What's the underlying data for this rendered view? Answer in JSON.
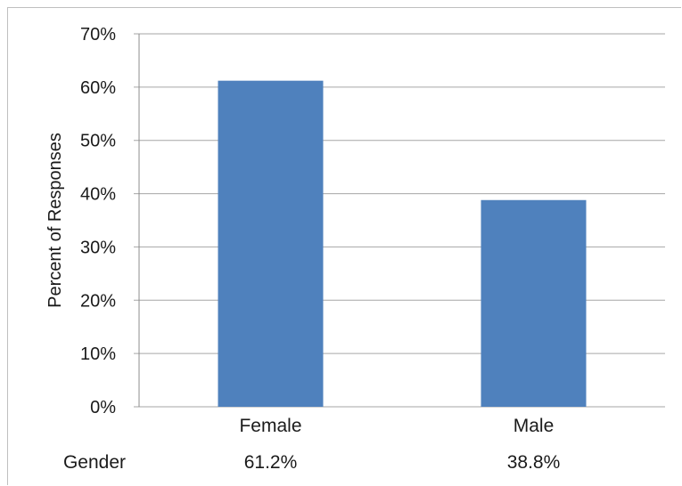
{
  "chart_data": {
    "type": "bar",
    "categories": [
      "Female",
      "Male"
    ],
    "values": [
      61.2,
      38.8
    ],
    "ylabel": "Percent of Responses",
    "xlabel": "",
    "ylim": [
      0,
      70
    ],
    "yticks": [
      "0%",
      "10%",
      "20%",
      "30%",
      "40%",
      "50%",
      "60%",
      "70%"
    ],
    "grid": true,
    "bar_color": "#4f81bd",
    "data_table": {
      "row_label": "Gender",
      "values": [
        "61.2%",
        "38.8%"
      ]
    }
  }
}
